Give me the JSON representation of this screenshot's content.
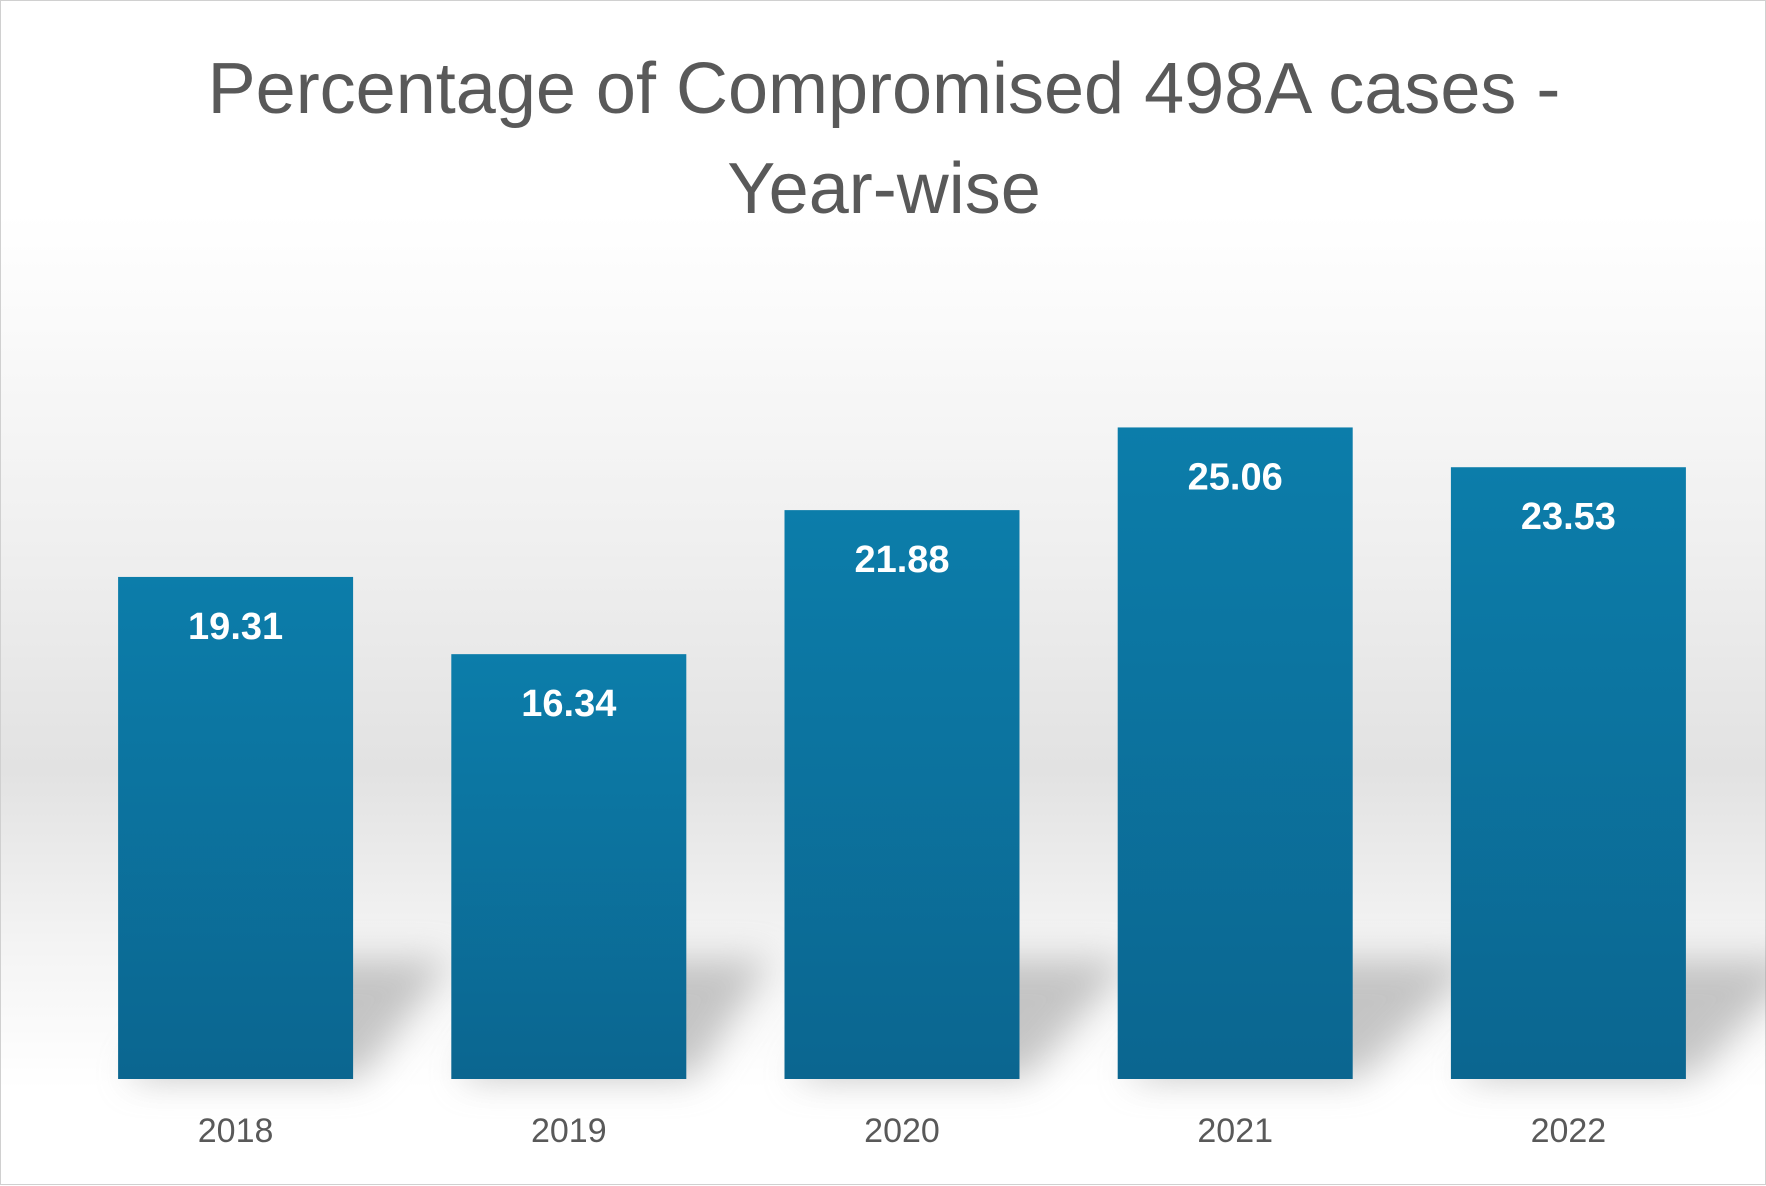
{
  "chart_data": {
    "type": "bar",
    "title": "Percentage of Compromised 498A cases - Year-wise",
    "title_lines": [
      "Percentage of Compromised 498A cases -",
      "Year-wise"
    ],
    "categories": [
      "2018",
      "2019",
      "2020",
      "2021",
      "2022"
    ],
    "values": [
      19.31,
      16.34,
      21.88,
      25.06,
      23.53
    ],
    "value_labels": [
      "19.31",
      "16.34",
      "21.88",
      "25.06",
      "23.53"
    ],
    "xlabel": "",
    "ylabel": "",
    "ylim": [
      0,
      32.5
    ],
    "grid": false,
    "legend": "none",
    "data_labels": "inside-end",
    "colors": {
      "bar_top": "#0C7DAA",
      "bar_bottom": "#0B6690",
      "title": "#595959",
      "tick_label": "#595959",
      "value_label": "#FFFFFF"
    }
  }
}
